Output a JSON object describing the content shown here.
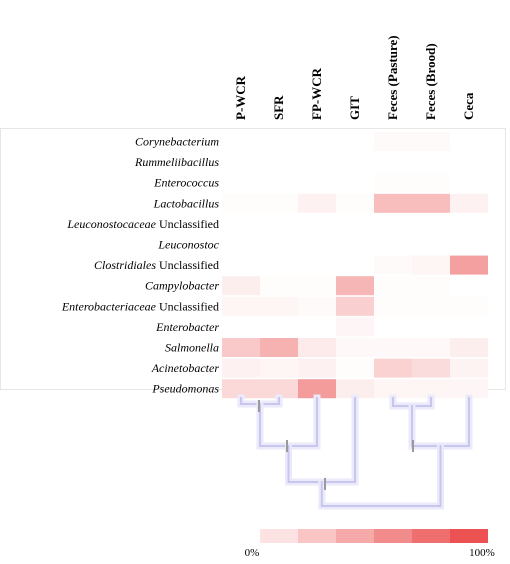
{
  "chart_data": {
    "type": "heatmap",
    "title": "",
    "xlabel": "",
    "ylabel": "",
    "columns": [
      "P-WCR",
      "SFR",
      "FP-WCR",
      "GIT",
      "Feces (Pasture)",
      "Feces (Brood)",
      "Ceca"
    ],
    "rows": [
      {
        "name": "Corynebacterium",
        "italic": "Corynebacterium",
        "suffix": ""
      },
      {
        "name": "Rummeliibacillus",
        "italic": "Rummeliibacillus",
        "suffix": ""
      },
      {
        "name": "Enterococcus",
        "italic": "Enterococcus",
        "suffix": ""
      },
      {
        "name": "Lactobacillus",
        "italic": "Lactobacillus",
        "suffix": ""
      },
      {
        "name": "Leuconostocaceae Unclassified",
        "italic": "Leuconostocaceae",
        "suffix": " Unclassified"
      },
      {
        "name": "Leuconostoc",
        "italic": "Leuconostoc",
        "suffix": ""
      },
      {
        "name": "Clostridiales Unclassified",
        "italic": "Clostridiales",
        "suffix": " Unclassified"
      },
      {
        "name": "Campylobacter",
        "italic": "Campylobacter",
        "suffix": ""
      },
      {
        "name": "Enterobacteriaceae Unclassified",
        "italic": "Enterobacteriaceae",
        "suffix": " Unclassified"
      },
      {
        "name": "Enterobacter",
        "italic": "Enterobacter",
        "suffix": ""
      },
      {
        "name": "Salmonella",
        "italic": "Salmonella",
        "suffix": ""
      },
      {
        "name": "Acinetobacter",
        "italic": "Acinetobacter",
        "suffix": ""
      },
      {
        "name": "Pseudomonas",
        "italic": "Pseudomonas",
        "suffix": ""
      }
    ],
    "values": [
      [
        0,
        0,
        0,
        0,
        3,
        3,
        0
      ],
      [
        0,
        0,
        0,
        0,
        0,
        0,
        0
      ],
      [
        0,
        0,
        0,
        0,
        2,
        2,
        0
      ],
      [
        2,
        2,
        8,
        2,
        38,
        38,
        8
      ],
      [
        0,
        0,
        0,
        0,
        0,
        0,
        0
      ],
      [
        0,
        0,
        0,
        0,
        0,
        0,
        0
      ],
      [
        0,
        0,
        0,
        0,
        3,
        6,
        55
      ],
      [
        10,
        2,
        2,
        42,
        2,
        2,
        0
      ],
      [
        6,
        6,
        3,
        28,
        2,
        2,
        2
      ],
      [
        0,
        0,
        0,
        5,
        0,
        0,
        0
      ],
      [
        32,
        45,
        12,
        4,
        4,
        4,
        10
      ],
      [
        8,
        6,
        8,
        2,
        26,
        20,
        7
      ],
      [
        22,
        22,
        58,
        10,
        6,
        6,
        5
      ]
    ],
    "scale": {
      "min_label": "0%",
      "max_label": "100%",
      "low_color": "#ffffff",
      "high_color": "#ec5252",
      "steps": 7
    },
    "dendrogram_color": "#c8c6ef",
    "ylim": [
      0,
      100
    ]
  }
}
